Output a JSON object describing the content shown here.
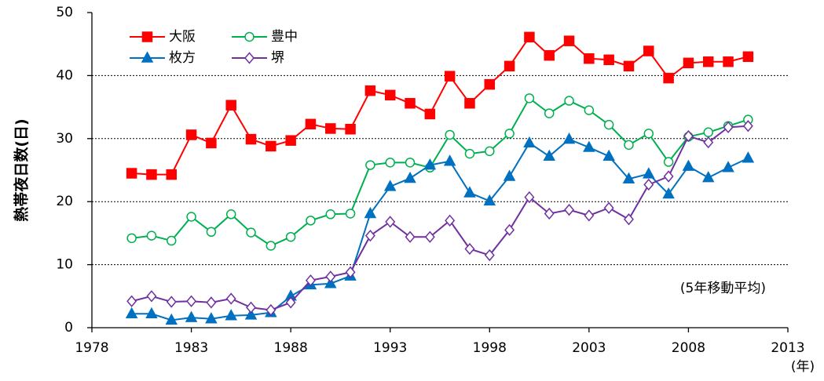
{
  "chart_data": {
    "type": "line",
    "y_label": "熱帯夜日数(日)",
    "x_unit_label": "(年)",
    "annotation": "(5年移動平均)",
    "x": [
      1980,
      1981,
      1982,
      1983,
      1984,
      1985,
      1986,
      1987,
      1988,
      1989,
      1990,
      1991,
      1992,
      1993,
      1994,
      1995,
      1996,
      1997,
      1998,
      1999,
      2000,
      2001,
      2002,
      2003,
      2004,
      2005,
      2006,
      2007,
      2008,
      2009,
      2010,
      2011
    ],
    "series": [
      {
        "name": "大阪",
        "color": "#ff0000",
        "marker": "square",
        "values": [
          24.5,
          24.3,
          24.3,
          30.6,
          29.3,
          35.3,
          29.9,
          28.8,
          29.7,
          32.3,
          31.6,
          31.5,
          37.6,
          36.9,
          35.6,
          33.9,
          39.9,
          35.6,
          38.6,
          41.5,
          46.1,
          43.2,
          45.5,
          42.7,
          42.5,
          41.5,
          43.9,
          39.6,
          42.0,
          42.2,
          42.2,
          43.0
        ]
      },
      {
        "name": "豊中",
        "color": "#00b050",
        "marker": "circle",
        "values": [
          14.2,
          14.6,
          13.8,
          17.6,
          15.2,
          18.0,
          15.1,
          13.0,
          14.4,
          17.0,
          18.0,
          18.1,
          25.8,
          26.2,
          26.2,
          25.4,
          30.6,
          27.6,
          28.0,
          30.8,
          36.4,
          34.0,
          36.0,
          34.5,
          32.2,
          29.0,
          30.8,
          26.3,
          30.3,
          31.0,
          32.0,
          33.0
        ]
      },
      {
        "name": "枚方",
        "color": "#0070c0",
        "marker": "triangle",
        "values": [
          2.2,
          2.2,
          1.2,
          1.6,
          1.4,
          1.9,
          2.0,
          2.4,
          5.0,
          6.8,
          7.0,
          8.2,
          18.1,
          22.4,
          23.7,
          25.8,
          26.4,
          21.4,
          20.1,
          24.0,
          29.3,
          27.2,
          29.9,
          28.6,
          27.2,
          23.6,
          24.4,
          21.2,
          25.6,
          23.8,
          25.4,
          26.9
        ]
      },
      {
        "name": "堺",
        "color": "#7030a0",
        "marker": "diamond",
        "values": [
          4.2,
          5.0,
          4.1,
          4.2,
          4.0,
          4.6,
          3.2,
          2.8,
          4.0,
          7.5,
          8.1,
          8.8,
          14.6,
          16.8,
          14.4,
          14.4,
          17.0,
          12.5,
          11.5,
          15.5,
          20.7,
          18.1,
          18.7,
          17.8,
          19.0,
          17.2,
          22.7,
          24.0,
          30.4,
          29.4,
          31.8,
          32.0
        ]
      }
    ],
    "xlim": [
      1978,
      2013
    ],
    "xticks": [
      1978,
      1983,
      1988,
      1993,
      1998,
      2003,
      2008,
      2013
    ],
    "ylim": [
      0,
      50
    ],
    "yticks": [
      0,
      10,
      20,
      30,
      40,
      50
    ],
    "grid": true
  }
}
